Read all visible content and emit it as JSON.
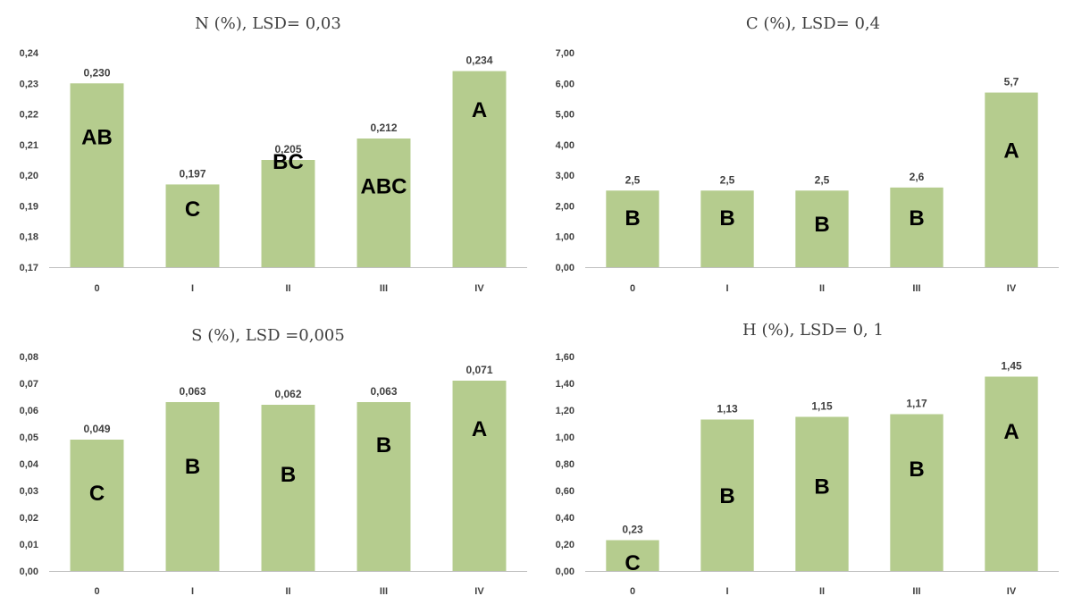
{
  "bar_color": "#b5cc8e",
  "axis_color": "#bfbfbf",
  "chart_data": [
    {
      "type": "bar",
      "title": "N (%), LSD= 0,03",
      "categories": [
        "0",
        "I",
        "II",
        "III",
        "IV"
      ],
      "values": [
        0.23,
        0.197,
        0.205,
        0.212,
        0.234
      ],
      "value_labels": [
        "0,230",
        "0,197",
        "0,205",
        "0,212",
        "0,234"
      ],
      "group_letters": [
        "AB",
        "C",
        "BC",
        "ABC",
        "A"
      ],
      "letter_values": [
        0.2125,
        0.1889,
        0.2044,
        0.1964,
        0.2214
      ],
      "ylim": [
        0.17,
        0.24
      ],
      "yticks": [
        "0,17",
        "0,18",
        "0,19",
        "0,20",
        "0,21",
        "0,22",
        "0,23",
        "0,24"
      ],
      "grid": false
    },
    {
      "type": "bar",
      "title": "C (%), LSD= 0,4",
      "categories": [
        "0",
        "I",
        "II",
        "III",
        "IV"
      ],
      "values": [
        2.5,
        2.5,
        2.5,
        2.6,
        5.7
      ],
      "value_labels": [
        "2,5",
        "2,5",
        "2,5",
        "2,6",
        "5,7"
      ],
      "group_letters": [
        "B",
        "B",
        "B",
        "B",
        "A"
      ],
      "letter_values": [
        1.6,
        1.6,
        1.4,
        1.6,
        3.8
      ],
      "ylim": [
        0,
        7
      ],
      "yticks": [
        "0,00",
        "1,00",
        "2,00",
        "3,00",
        "4,00",
        "5,00",
        "6,00",
        "7,00"
      ],
      "grid": false
    },
    {
      "type": "bar",
      "title": "S (%), LSD =0,005",
      "categories": [
        "0",
        "I",
        "II",
        "III",
        "IV"
      ],
      "values": [
        0.049,
        0.063,
        0.062,
        0.063,
        0.071
      ],
      "value_labels": [
        "0,049",
        "0,063",
        "0,062",
        "0,063",
        "0,071"
      ],
      "group_letters": [
        "C",
        "B",
        "B",
        "B",
        "A"
      ],
      "letter_values": [
        0.029,
        0.039,
        0.036,
        0.047,
        0.053
      ],
      "ylim": [
        0,
        0.08
      ],
      "yticks": [
        "0,00",
        "0,01",
        "0,02",
        "0,03",
        "0,04",
        "0,05",
        "0,06",
        "0,07",
        "0,08"
      ],
      "grid": false
    },
    {
      "type": "bar",
      "title": "H (%), LSD= 0, 1",
      "categories": [
        "0",
        "I",
        "II",
        "III",
        "IV"
      ],
      "values": [
        0.23,
        1.13,
        1.15,
        1.17,
        1.45
      ],
      "value_labels": [
        "0,23",
        "1,13",
        "1,15",
        "1,17",
        "1,45"
      ],
      "group_letters": [
        "C",
        "B",
        "B",
        "B",
        "A"
      ],
      "letter_values": [
        0.06,
        0.56,
        0.63,
        0.76,
        1.04
      ],
      "ylim": [
        0,
        1.6
      ],
      "yticks": [
        "0,00",
        "0,20",
        "0,40",
        "0,60",
        "0,80",
        "1,00",
        "1,20",
        "1,40",
        "1,60"
      ],
      "grid": false
    }
  ]
}
